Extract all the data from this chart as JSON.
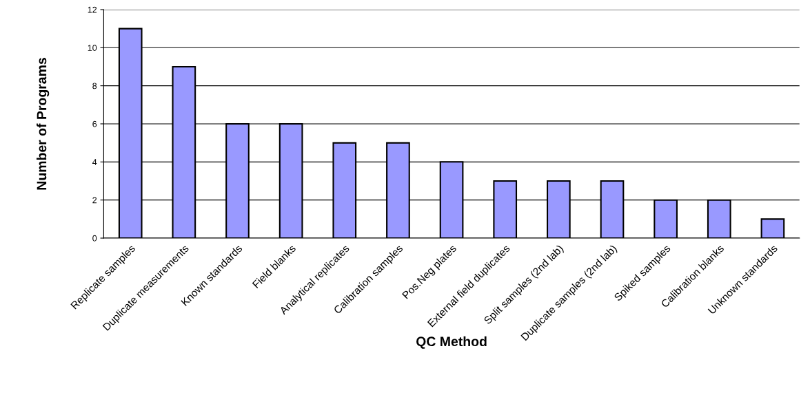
{
  "chart_data": {
    "type": "bar",
    "xlabel": "QC Method",
    "ylabel": "Number of Programs",
    "categories": [
      "Replicate samples",
      "Duplicate measurements",
      "Known standards",
      "Field blanks",
      "Analytical replicates",
      "Calibration samples",
      "Pos.Neg plates",
      "External field duplicates",
      "Split samples (2nd lab)",
      "Duplicate samples (2nd lab)",
      "Spiked samples",
      "Calibration blanks",
      "Unknown standards"
    ],
    "values": [
      11,
      9,
      6,
      6,
      5,
      5,
      4,
      3,
      3,
      3,
      2,
      2,
      1
    ],
    "color": "#9999ff",
    "ylim": [
      0,
      12
    ],
    "yticks": [
      0,
      2,
      4,
      6,
      8,
      10,
      12
    ],
    "grid": "y",
    "legend": false
  }
}
